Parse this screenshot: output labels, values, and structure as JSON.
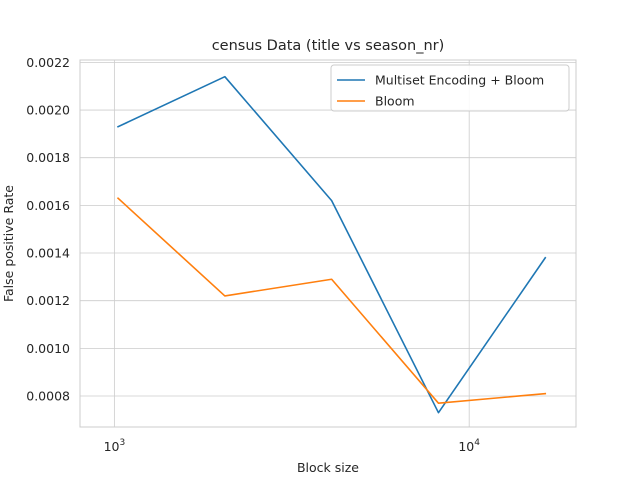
{
  "chart_data": {
    "type": "line",
    "title": "census Data (title vs season_nr)",
    "xlabel": "Block size",
    "ylabel": "False positive Rate",
    "x_scale": "log",
    "xlim": [
      800,
      20000
    ],
    "ylim": [
      0.00067,
      0.00221
    ],
    "x_ticks": [
      {
        "value": 1000,
        "base": "10",
        "exp": "3"
      },
      {
        "value": 10000,
        "base": "10",
        "exp": "4"
      }
    ],
    "y_ticks": [
      {
        "value": 0.0008,
        "label": "0.0008"
      },
      {
        "value": 0.001,
        "label": "0.0010"
      },
      {
        "value": 0.0012,
        "label": "0.0012"
      },
      {
        "value": 0.0014,
        "label": "0.0014"
      },
      {
        "value": 0.0016,
        "label": "0.0016"
      },
      {
        "value": 0.0018,
        "label": "0.0018"
      },
      {
        "value": 0.002,
        "label": "0.0020"
      },
      {
        "value": 0.0022,
        "label": "0.0022"
      }
    ],
    "x": [
      1024,
      2048,
      4096,
      8192,
      16384
    ],
    "series": [
      {
        "name": "Multiset Encoding + Bloom",
        "color": "#1f77b4",
        "values": [
          0.00193,
          0.00214,
          0.00162,
          0.00073,
          0.00138
        ]
      },
      {
        "name": "Bloom",
        "color": "#ff7f0e",
        "values": [
          0.00163,
          0.00122,
          0.00129,
          0.00077,
          0.00081
        ]
      }
    ],
    "grid": true,
    "legend_position": "top-right"
  }
}
